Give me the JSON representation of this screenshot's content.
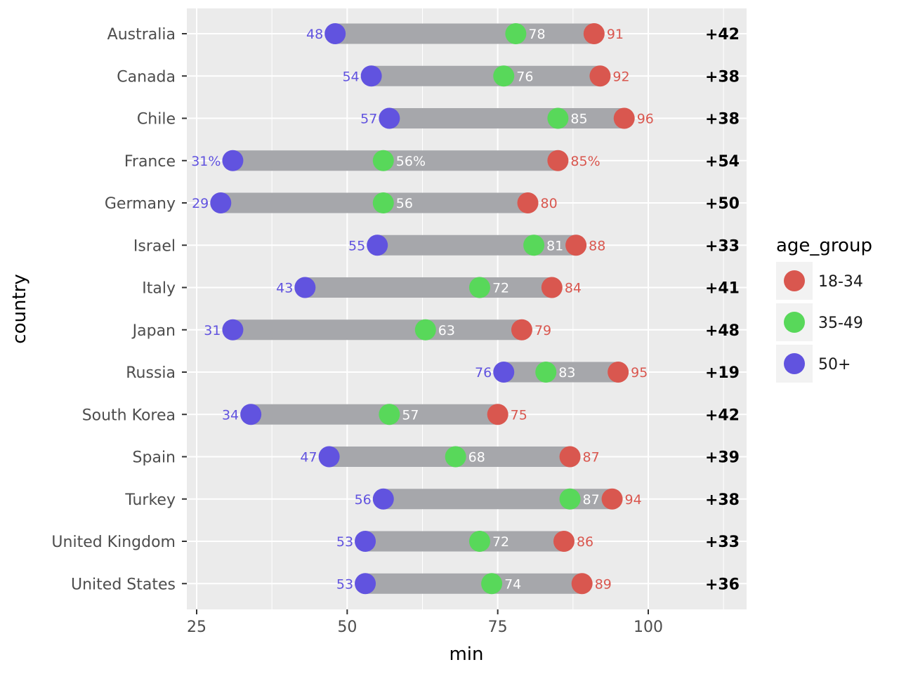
{
  "chart_data": {
    "type": "dumbbell",
    "xlabel": "min",
    "ylabel": "country",
    "xlim": [
      21.5,
      115
    ],
    "xticks": [
      25,
      50,
      75,
      100
    ],
    "tick_labels": [
      "25",
      "50",
      "75",
      "100"
    ],
    "grid": true,
    "legend": {
      "title": "age_group",
      "position": "right",
      "entries": [
        {
          "label": "18-34",
          "color": "#d9574f"
        },
        {
          "label": "35-49",
          "color": "#58d85a"
        },
        {
          "label": "50+",
          "color": "#6153df"
        }
      ]
    },
    "colors": {
      "panel": "#ebebeb",
      "bar": "#a6a7ab",
      "young": "#d9574f",
      "mid": "#58d85a",
      "old": "#6153df"
    },
    "rows": [
      {
        "country": "United States",
        "young": 89,
        "mid": 74,
        "old": 53,
        "young_label": "89",
        "mid_label": "74",
        "old_label": "53",
        "gap_label": "+36"
      },
      {
        "country": "United Kingdom",
        "young": 86,
        "mid": 72,
        "old": 53,
        "young_label": "86",
        "mid_label": "72",
        "old_label": "53",
        "gap_label": "+33"
      },
      {
        "country": "Turkey",
        "young": 94,
        "mid": 87,
        "old": 56,
        "young_label": "94",
        "mid_label": "87",
        "old_label": "56",
        "gap_label": "+38"
      },
      {
        "country": "Spain",
        "young": 87,
        "mid": 68,
        "old": 47,
        "young_label": "87",
        "mid_label": "68",
        "old_label": "47",
        "gap_label": "+39"
      },
      {
        "country": "South Korea",
        "young": 75,
        "mid": 57,
        "old": 34,
        "young_label": "75",
        "mid_label": "57",
        "old_label": "34",
        "gap_label": "+42"
      },
      {
        "country": "Russia",
        "young": 95,
        "mid": 83,
        "old": 76,
        "young_label": "95",
        "mid_label": "83",
        "old_label": "76",
        "gap_label": "+19"
      },
      {
        "country": "Japan",
        "young": 79,
        "mid": 63,
        "old": 31,
        "young_label": "79",
        "mid_label": "63",
        "old_label": "31",
        "gap_label": "+48"
      },
      {
        "country": "Italy",
        "young": 84,
        "mid": 72,
        "old": 43,
        "young_label": "84",
        "mid_label": "72",
        "old_label": "43",
        "gap_label": "+41"
      },
      {
        "country": "Israel",
        "young": 88,
        "mid": 81,
        "old": 55,
        "young_label": "88",
        "mid_label": "81",
        "old_label": "55",
        "gap_label": "+33"
      },
      {
        "country": "Germany",
        "young": 80,
        "mid": 56,
        "old": 29,
        "young_label": "80",
        "mid_label": "56",
        "old_label": "29",
        "gap_label": "+50"
      },
      {
        "country": "France",
        "young": 85,
        "mid": 56,
        "old": 31,
        "young_label": "85%",
        "mid_label": "56%",
        "old_label": "31%",
        "gap_label": "+54"
      },
      {
        "country": "Chile",
        "young": 96,
        "mid": 85,
        "old": 57,
        "young_label": "96",
        "mid_label": "85",
        "old_label": "57",
        "gap_label": "+38"
      },
      {
        "country": "Canada",
        "young": 92,
        "mid": 76,
        "old": 54,
        "young_label": "92",
        "mid_label": "76",
        "old_label": "54",
        "gap_label": "+38"
      },
      {
        "country": "Australia",
        "young": 91,
        "mid": 78,
        "old": 48,
        "young_label": "91",
        "mid_label": "78",
        "old_label": "48",
        "gap_label": "+42"
      }
    ]
  }
}
